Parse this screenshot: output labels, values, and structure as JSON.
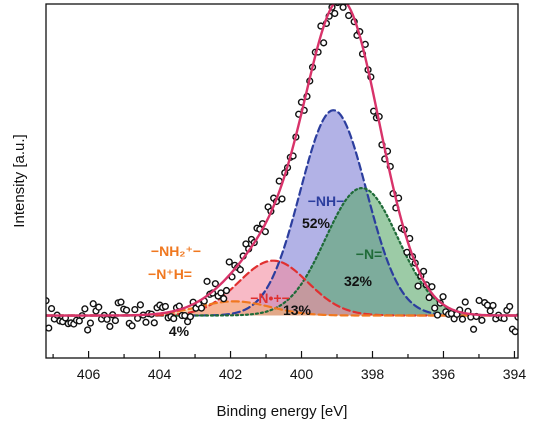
{
  "chart_data": {
    "type": "scatter",
    "title": "",
    "xlabel": "Binding energy [eV]",
    "ylabel": "Intensity [a.u.]",
    "xlim": [
      407.2,
      393.9
    ],
    "x_reversed": true,
    "ylim": [
      0,
      1.0
    ],
    "x_ticks": [
      406,
      404,
      402,
      400,
      398,
      396,
      394
    ],
    "x_tick_labels": [
      "406",
      "404",
      "402",
      "400",
      "398",
      "396",
      "394"
    ],
    "grid": false,
    "legend": "none",
    "baseline": 0.12,
    "components": [
      {
        "label": "−NH−",
        "percent": "52%",
        "center": 399.1,
        "fwhm": 2.2,
        "height": 0.58,
        "line_color": "#2c3e9e",
        "fill_color": "#7f7fd6",
        "line_style": "dashed"
      },
      {
        "label": "−N=",
        "percent": "32%",
        "center": 398.3,
        "fwhm": 2.4,
        "height": 0.36,
        "line_color": "#1f6b38",
        "fill_color": "#5aa86a",
        "line_style": "dotted"
      },
      {
        "label": "−N•+−",
        "percent": "13%",
        "center": 400.8,
        "fwhm": 2.3,
        "height": 0.155,
        "line_color": "#e03030",
        "fill_color": "#f48ca0",
        "line_style": "dashed"
      },
      {
        "label": "−NH₂⁺− / −N⁺H=",
        "percent": "4%",
        "center": 401.9,
        "fwhm": 2.4,
        "height": 0.04,
        "line_color": "#f07820",
        "fill_color": "#f6b27a",
        "line_style": "dashed"
      }
    ],
    "annotations": {
      "nh": "−NH−",
      "nh_pct": "52%",
      "n_eq": "−N=",
      "n_eq_pct": "32%",
      "n_rad": "−N•+−",
      "n_rad_pct": "13%",
      "nh2_line1": "−NH₂⁺−",
      "nh2_line2": "−N⁺H=",
      "nh2_pct": "4%"
    },
    "envelope_color": "#d8336a",
    "data_marker": "open-circle",
    "data_points_x_range": [
      407.2,
      393.9
    ]
  }
}
